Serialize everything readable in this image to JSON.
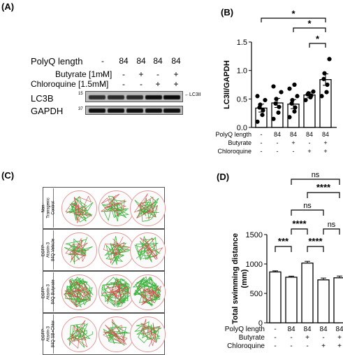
{
  "panel_a": {
    "label": "(A)",
    "rows": [
      {
        "name": "PolyQ length",
        "values": [
          "-",
          "84",
          "84",
          "84",
          "84"
        ]
      },
      {
        "name": "Butyrate [1mM]",
        "values": [
          "-",
          "-",
          "+",
          "-",
          "+"
        ]
      },
      {
        "name": "Chloroquine [1.5mM]",
        "values": [
          "-",
          "-",
          "-",
          "+",
          "+"
        ]
      }
    ],
    "blots": [
      {
        "name": "LC3B",
        "mw": "15",
        "arrow_label": "←LC3II",
        "intensities": [
          0.55,
          0.6,
          0.6,
          0.95,
          1.0
        ]
      },
      {
        "name": "GAPDH",
        "mw": "37",
        "intensities": [
          0.95,
          0.95,
          0.95,
          0.95,
          0.95
        ]
      }
    ]
  },
  "panel_b": {
    "label": "(B)",
    "row_labels": [
      "PolyQ length",
      "Butyrate",
      "Chloroquine"
    ],
    "row_values": [
      [
        "-",
        "84",
        "84",
        "84",
        "84"
      ],
      [
        "-",
        "-",
        "+",
        "-",
        "+"
      ],
      [
        "-",
        "-",
        "-",
        "+",
        "+"
      ]
    ],
    "sig": [
      "*",
      "*",
      "*"
    ],
    "chart_data": {
      "type": "bar",
      "ylabel": "LC3II/GAPDH",
      "ylim": [
        0,
        1.5
      ],
      "yticks": [
        "0.0",
        "0.5",
        "1.0",
        "1.5"
      ],
      "values": [
        0.34,
        0.43,
        0.41,
        0.57,
        0.84
      ],
      "errors": [
        0.07,
        0.08,
        0.08,
        0.05,
        0.1
      ],
      "points": [
        [
          0.1,
          0.22,
          0.3,
          0.35,
          0.4,
          0.48,
          0.55
        ],
        [
          0.15,
          0.26,
          0.36,
          0.42,
          0.5,
          0.62,
          0.72
        ],
        [
          0.18,
          0.28,
          0.35,
          0.42,
          0.48,
          0.55,
          0.68,
          0.75
        ],
        [
          0.48,
          0.53,
          0.56,
          0.58,
          0.6,
          0.63
        ],
        [
          0.55,
          0.62,
          0.75,
          0.85,
          0.95,
          1.2
        ]
      ]
    }
  },
  "panel_c": {
    "label": "(C)",
    "rows": [
      {
        "lines": [
          "Non-",
          "Transgenic",
          "Control"
        ]
      },
      {
        "lines": [
          "EGFP-",
          "Ataxin-3",
          "84Q Vehicle"
        ]
      },
      {
        "lines": [
          "EGFP-",
          "Ataxin-3",
          "84Q Butyrate"
        ]
      },
      {
        "lines": [
          "EGFP-",
          "Ataxin-3",
          "84Q SB+Chlor"
        ]
      }
    ]
  },
  "panel_d": {
    "label": "(D)",
    "row_labels": [
      "PolyQ length",
      "Butyrate",
      "Chloroquine"
    ],
    "row_values": [
      [
        "-",
        "84",
        "84",
        "84",
        "84"
      ],
      [
        "-",
        "-",
        "+",
        "-",
        "+"
      ],
      [
        "-",
        "-",
        "-",
        "+",
        "+"
      ]
    ],
    "sig": [
      "ns",
      "****",
      "ns",
      "****",
      "***",
      "****",
      "ns"
    ],
    "chart_data": {
      "type": "bar",
      "ylabel": "Total swimming distance (mm)",
      "ylim": [
        0,
        1500
      ],
      "yticks": [
        "0",
        "500",
        "1000",
        "1500"
      ],
      "values": [
        865,
        775,
        1015,
        730,
        765
      ],
      "errors": [
        18,
        18,
        30,
        30,
        30
      ]
    }
  }
}
